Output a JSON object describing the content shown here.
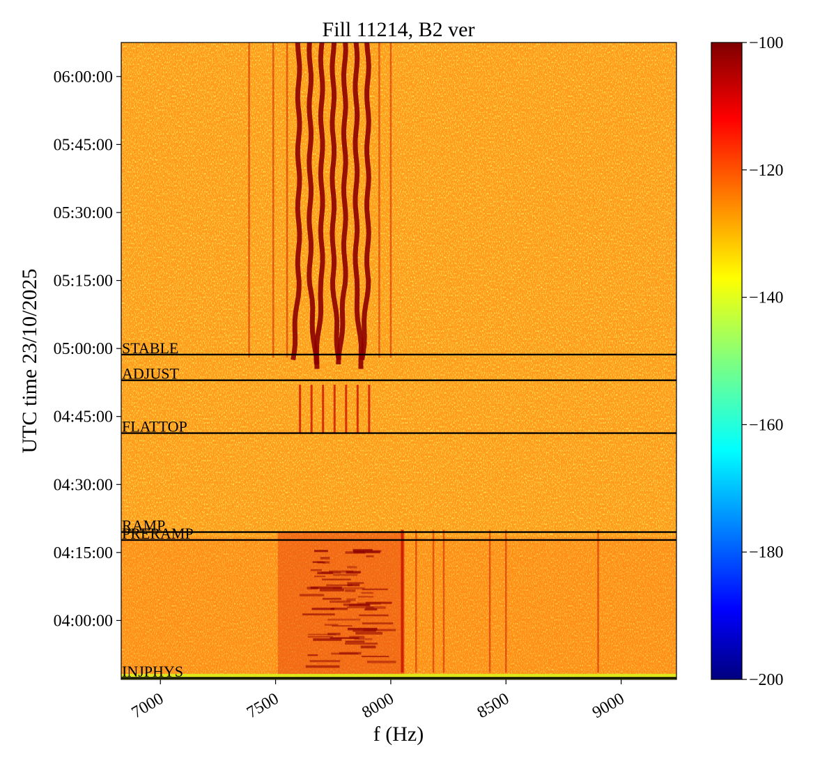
{
  "chart_data": {
    "type": "heatmap",
    "title": "Fill 11214, B2 ver",
    "xlabel": "f (Hz)",
    "ylabel": "UTC time 23/10/2025",
    "x_range": [
      6830,
      9240
    ],
    "x_ticks": [
      7000,
      7500,
      8000,
      8500,
      9000
    ],
    "y_range": [
      "03:47:00",
      "06:07:30"
    ],
    "y_ticks": [
      "04:00:00",
      "04:15:00",
      "04:30:00",
      "04:45:00",
      "05:00:00",
      "05:15:00",
      "05:30:00",
      "05:45:00",
      "06:00:00"
    ],
    "colorbar": {
      "colormap": "jet",
      "range": [
        -200,
        -100
      ],
      "ticks": [
        -100,
        -120,
        -140,
        -160,
        -180,
        -200
      ],
      "tick_labels": [
        "−100",
        "−120",
        "−140",
        "−160",
        "−180",
        "−200"
      ]
    },
    "background_level": -125,
    "phases": [
      {
        "label": "INJPHYS",
        "time": "03:47:20"
      },
      {
        "label": "PRERAMP",
        "time": "04:17:45"
      },
      {
        "label": "RAMP",
        "time": "04:19:30"
      },
      {
        "label": "FLATTOP",
        "time": "04:41:20"
      },
      {
        "label": "ADJUST",
        "time": "04:53:00"
      },
      {
        "label": "STABLE",
        "time": "04:58:40"
      }
    ],
    "strong_lines_hz": [
      7600,
      7650,
      7700,
      7750,
      7800,
      7850,
      7900
    ],
    "weak_lines_hz": [
      7385,
      7490,
      7550,
      7950,
      8000,
      8050,
      8110,
      8185,
      8230,
      8430,
      8500,
      8900
    ],
    "ramp_band_hz": [
      7550,
      8060
    ],
    "colors": {
      "background": "#ff9a1a",
      "line": "#8b0000",
      "noise": "#d7f21a"
    }
  }
}
